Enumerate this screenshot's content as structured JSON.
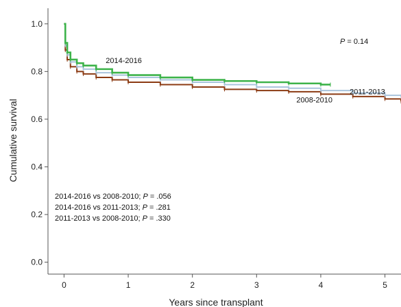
{
  "chart_data": {
    "type": "line",
    "subtype": "kaplan-meier",
    "xlabel": "Years since transplant",
    "ylabel": "Cumulative survival",
    "xlim": [
      -0.25,
      5.25
    ],
    "ylim": [
      -0.05,
      1.1
    ],
    "x_ticks": [
      "0",
      "1",
      "2",
      "3",
      "4",
      "5"
    ],
    "y_ticks": [
      "0.0",
      "0.2",
      "0.4",
      "0.6",
      "0.8",
      "1.0"
    ],
    "grid": false,
    "overall_p": {
      "prefix": "P",
      "text": " = 0.14"
    },
    "comparisons": [
      {
        "pre": "2014-2016 vs 2008-2010; ",
        "p": "P",
        "post": " = .056"
      },
      {
        "pre": "2014-2016 vs 2011-2013; ",
        "p": "P",
        "post": " = .281"
      },
      {
        "pre": "2011-2013 vs 2008-2010; ",
        "p": "P",
        "post": " = .330"
      }
    ],
    "series": [
      {
        "name": "2008-2010",
        "color": "#8b3a12",
        "x": [
          0,
          0.02,
          0.05,
          0.1,
          0.2,
          0.3,
          0.5,
          0.75,
          1.0,
          1.5,
          2.0,
          2.5,
          3.0,
          3.5,
          4.0,
          4.5,
          5.0,
          5.25
        ],
        "y": [
          1.0,
          0.89,
          0.85,
          0.82,
          0.8,
          0.79,
          0.775,
          0.765,
          0.755,
          0.745,
          0.735,
          0.725,
          0.72,
          0.715,
          0.705,
          0.695,
          0.685,
          0.675
        ]
      },
      {
        "name": "2011-2013",
        "color": "#a9c4dc",
        "x": [
          0,
          0.02,
          0.05,
          0.1,
          0.2,
          0.3,
          0.5,
          0.75,
          1.0,
          1.5,
          2.0,
          2.5,
          3.0,
          3.5,
          4.0,
          4.5,
          5.0,
          5.25
        ],
        "y": [
          1.0,
          0.91,
          0.87,
          0.84,
          0.82,
          0.81,
          0.795,
          0.785,
          0.775,
          0.765,
          0.755,
          0.745,
          0.735,
          0.73,
          0.72,
          0.71,
          0.7,
          0.695
        ]
      },
      {
        "name": "2014-2016",
        "color": "#3db34a",
        "x": [
          0,
          0.02,
          0.05,
          0.1,
          0.2,
          0.3,
          0.5,
          0.75,
          1.0,
          1.5,
          2.0,
          2.5,
          3.0,
          3.5,
          4.0,
          4.15
        ],
        "y": [
          1.0,
          0.92,
          0.88,
          0.85,
          0.835,
          0.825,
          0.81,
          0.795,
          0.785,
          0.775,
          0.765,
          0.76,
          0.755,
          0.75,
          0.745,
          0.745
        ]
      }
    ],
    "series_labels": [
      {
        "text": "2014-2016",
        "at": [
          0.65,
          0.835
        ]
      },
      {
        "text": "2011-2013",
        "at": [
          4.45,
          0.705
        ]
      },
      {
        "text": "2008-2010",
        "at": [
          3.62,
          0.67
        ]
      }
    ]
  }
}
